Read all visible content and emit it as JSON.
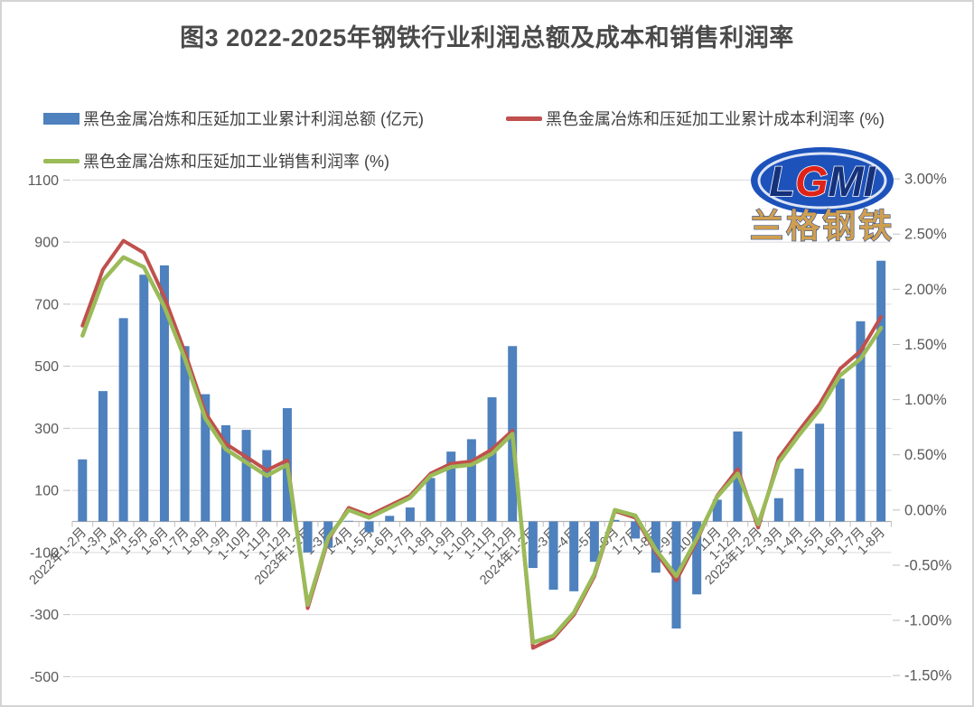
{
  "page": {
    "title": "图3 2022-2025年钢铁行业利润总额及成本和销售利润率"
  },
  "legend": [
    {
      "label": "黑色金属冶炼和压延加工业累计利润总额 (亿元)",
      "type": "bar",
      "color": "#4E81BD"
    },
    {
      "label": "黑色金属冶炼和压延加工业累计成本利润率 (%)",
      "type": "line",
      "color": "#C0504D"
    },
    {
      "label": "黑色金属冶炼和压延加工业销售利润率 (%)",
      "type": "line",
      "color": "#9BBB59"
    }
  ],
  "logo": {
    "line1": "LGMI",
    "line2": "兰格钢铁"
  },
  "chart_data": {
    "type": "combo",
    "title": "图3 2022-2025年钢铁行业利润总额及成本和销售利润率",
    "grid": true,
    "legend_position": "top",
    "categories": [
      "2022年1-2月",
      "1-3月",
      "1-4月",
      "1-5月",
      "1-6月",
      "1-7月",
      "1-8月",
      "1-9月",
      "1-10月",
      "1-11月",
      "1-12月",
      "2023年1-2月",
      "1-3月",
      "1-4月",
      "1-5月",
      "1-6月",
      "1-7月",
      "1-8月",
      "1-9月",
      "1-10月",
      "1-11月",
      "1-12月",
      "2024年1-2月",
      "1-3月",
      "1-4月",
      "1-5月",
      "1-6月",
      "1-7月",
      "1-8月",
      "1-9月",
      "1-10月",
      "1-11月",
      "1-12月",
      "2025年1-2月",
      "1-3月",
      "1-4月",
      "1-5月",
      "1-6月",
      "1-7月",
      "1-8月"
    ],
    "series": [
      {
        "name": "黑色金属冶炼和压延加工业累计利润总额 (亿元)",
        "type": "bar",
        "axis": "left",
        "color": "#4E81BD",
        "values": [
          200,
          420,
          655,
          795,
          825,
          565,
          410,
          310,
          295,
          230,
          365,
          -100,
          -85,
          2,
          -35,
          18,
          45,
          140,
          225,
          265,
          400,
          565,
          -150,
          -220,
          -225,
          -130,
          5,
          -55,
          -165,
          -345,
          -235,
          70,
          290,
          5,
          75,
          170,
          315,
          460,
          645,
          840
        ]
      },
      {
        "name": "黑色金属冶炼和压延加工业累计成本利润率 (%)",
        "type": "line",
        "axis": "right",
        "color": "#C0504D",
        "values": [
          1.67,
          2.18,
          2.44,
          2.33,
          1.93,
          1.43,
          0.88,
          0.6,
          0.48,
          0.36,
          0.45,
          -0.89,
          -0.27,
          0.02,
          -0.05,
          0.04,
          0.13,
          0.33,
          0.42,
          0.44,
          0.55,
          0.72,
          -1.25,
          -1.16,
          -0.95,
          -0.6,
          -0.01,
          -0.07,
          -0.38,
          -0.64,
          -0.28,
          0.13,
          0.37,
          -0.16,
          0.47,
          0.72,
          0.96,
          1.28,
          1.44,
          1.75
        ]
      },
      {
        "name": "黑色金属冶炼和压延加工业销售利润率 (%)",
        "type": "line",
        "axis": "right",
        "color": "#9BBB59",
        "values": [
          1.58,
          2.08,
          2.29,
          2.2,
          1.84,
          1.37,
          0.83,
          0.55,
          0.43,
          0.31,
          0.41,
          -0.86,
          -0.25,
          0.0,
          -0.07,
          0.02,
          0.11,
          0.31,
          0.39,
          0.41,
          0.51,
          0.69,
          -1.2,
          -1.14,
          -0.93,
          -0.58,
          0.0,
          -0.05,
          -0.36,
          -0.6,
          -0.26,
          0.12,
          0.33,
          -0.13,
          0.43,
          0.68,
          0.91,
          1.22,
          1.37,
          1.65
        ]
      }
    ],
    "left_axis": {
      "min": -500,
      "max": 1100,
      "step": 200,
      "ticks": [
        "1100",
        "900",
        "700",
        "500",
        "300",
        "100",
        "-100",
        "-300",
        "-500"
      ]
    },
    "right_axis": {
      "min": -1.5,
      "max": 3.0,
      "step": 0.5,
      "ticks": [
        "3.00%",
        "2.50%",
        "2.00%",
        "1.50%",
        "1.00%",
        "0.50%",
        "0.00%",
        "-0.50%",
        "-1.00%",
        "-1.50%"
      ]
    }
  }
}
